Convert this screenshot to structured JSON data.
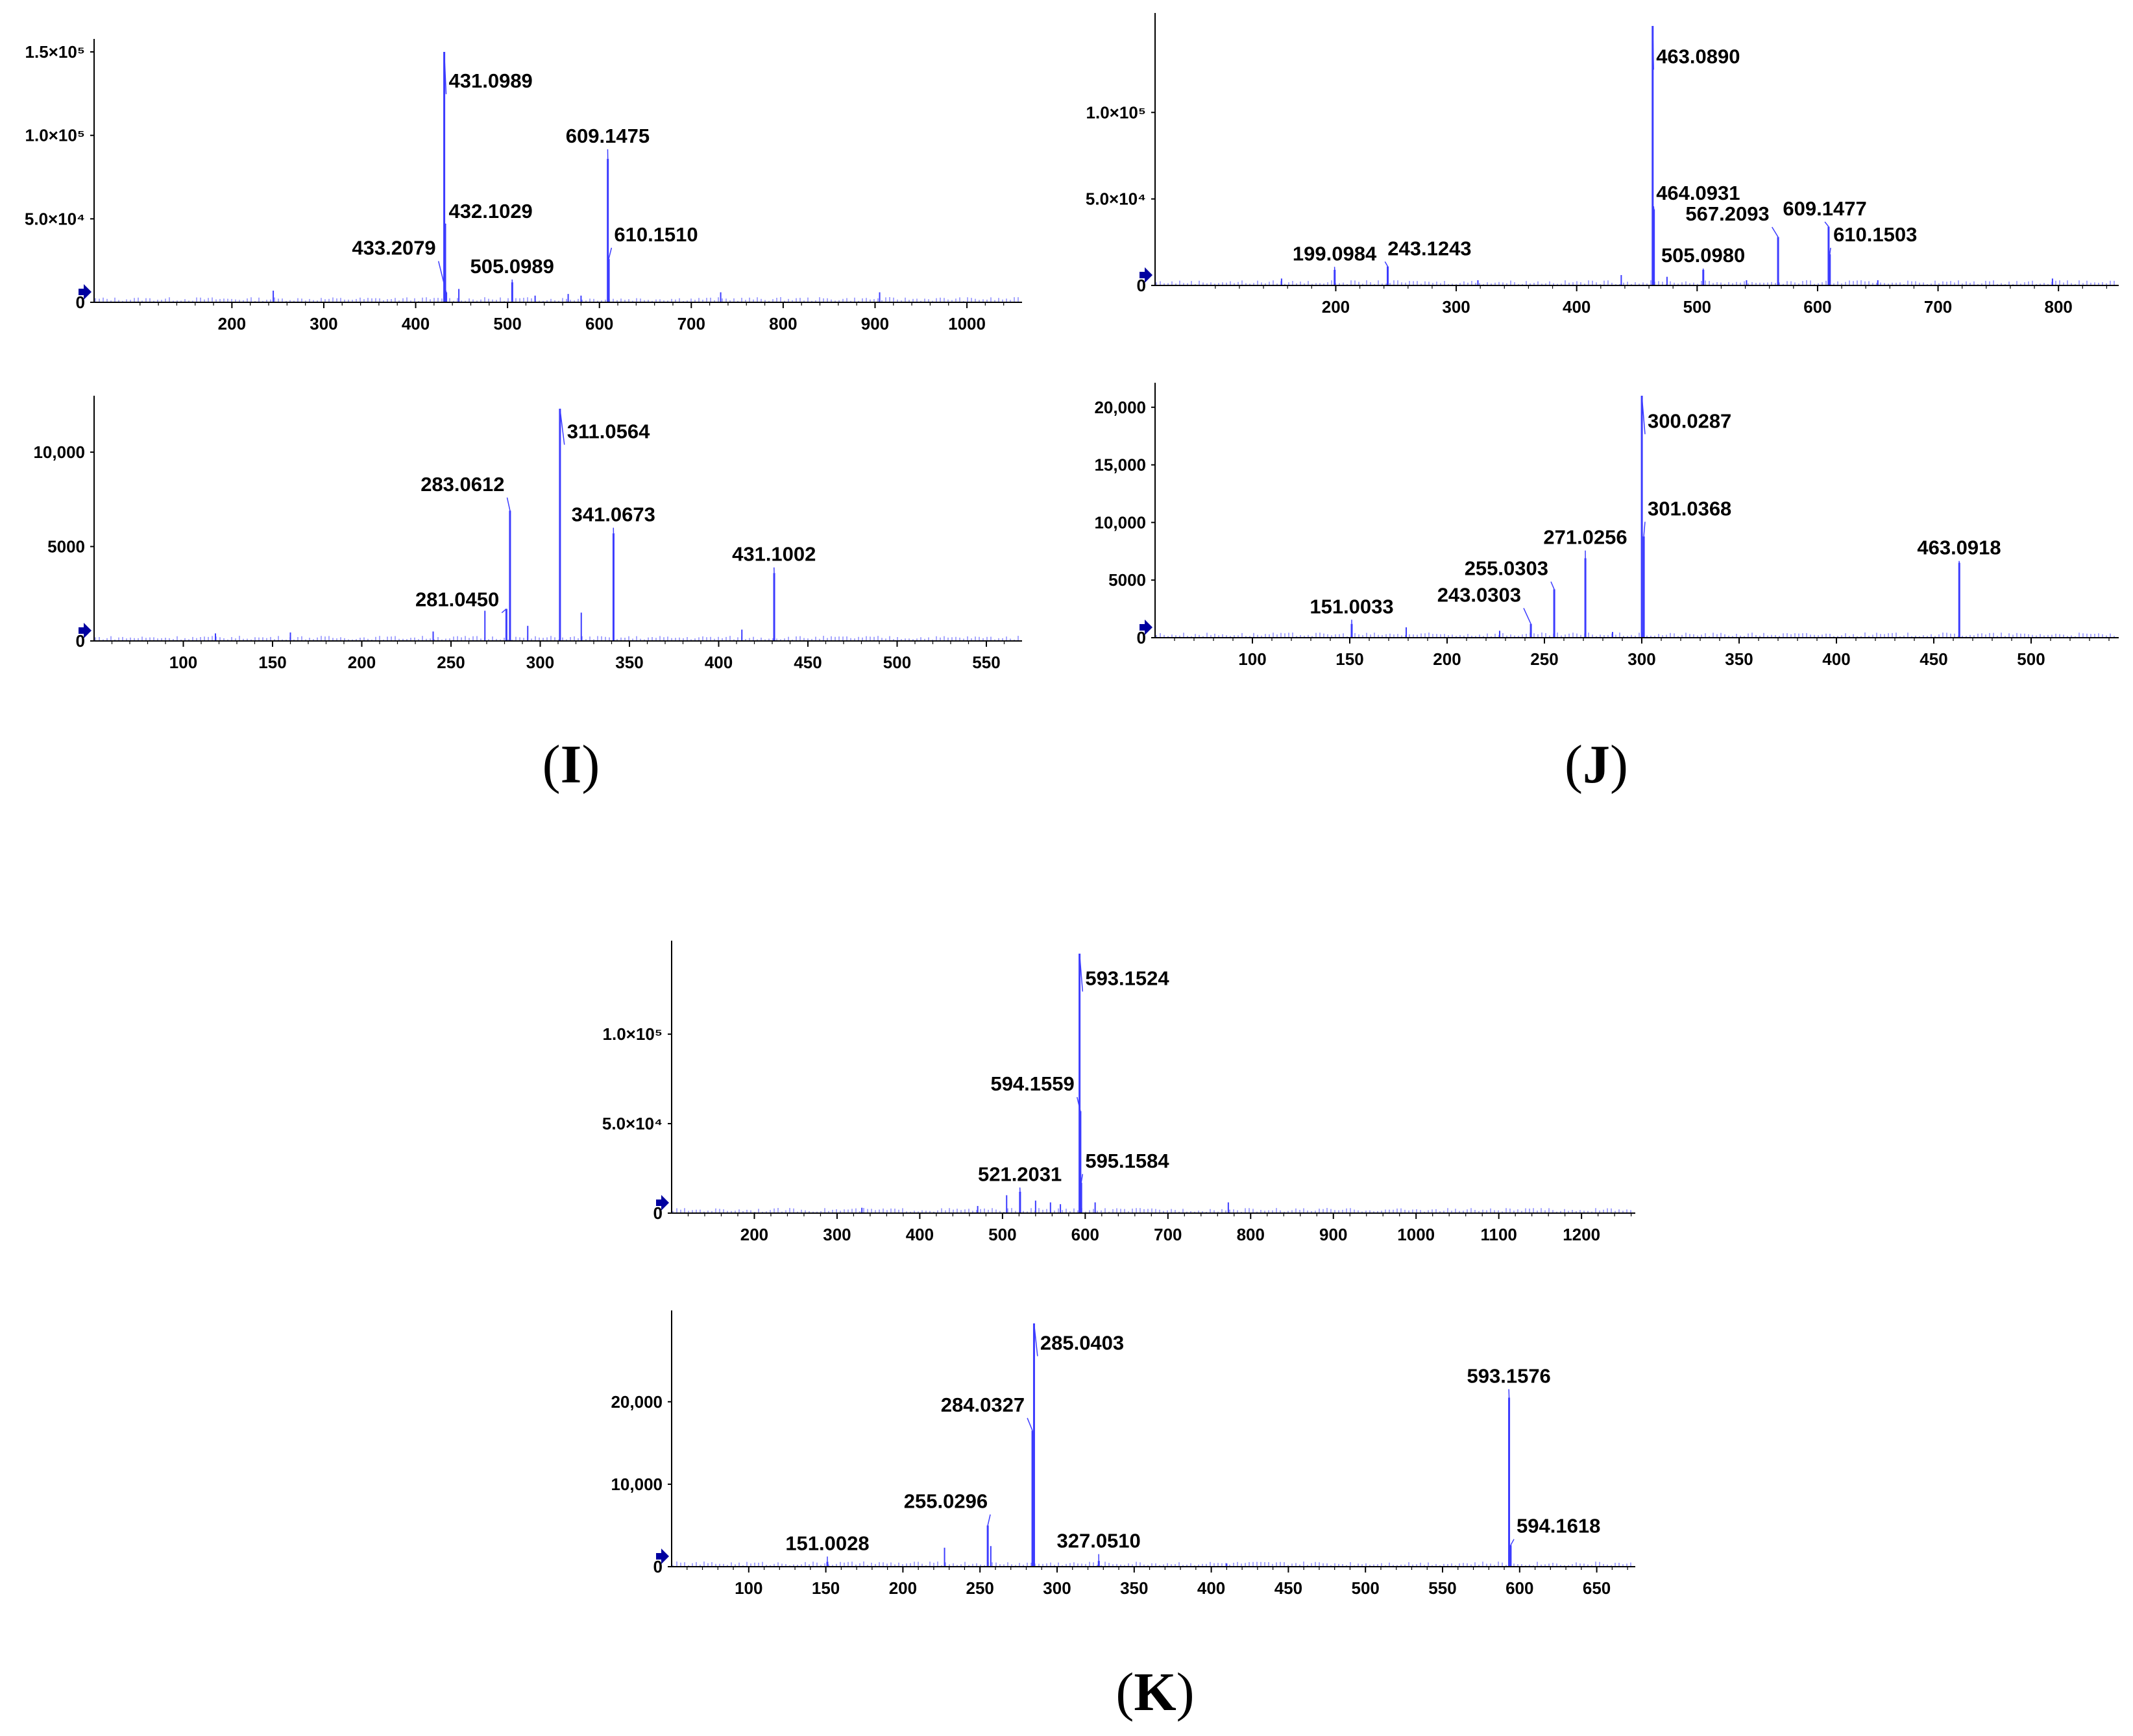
{
  "panels": [
    {
      "letter": "I",
      "open": "(",
      "close": ")"
    },
    {
      "letter": "J",
      "open": "(",
      "close": ")"
    },
    {
      "letter": "K",
      "open": "(",
      "close": ")"
    }
  ],
  "colors": {
    "peak": "#3c3cff",
    "axis": "#000000",
    "marker": "#0000a0"
  },
  "chart_data": [
    {
      "id": "I-ms1",
      "type": "bar",
      "xlim": [
        50,
        1060
      ],
      "ylim": [
        0,
        150000
      ],
      "xticks": [
        200,
        300,
        400,
        500,
        600,
        700,
        800,
        900,
        1000
      ],
      "yticks": [
        {
          "v": 0,
          "t": "0"
        },
        {
          "v": 50000,
          "t": "5.0×10⁴"
        },
        {
          "v": 100000,
          "t": "1.0×10⁵"
        },
        {
          "v": 150000,
          "t": "1.5×10⁵"
        }
      ],
      "peaks": [
        {
          "x": 431.0989,
          "y": 150000,
          "label": "431.0989",
          "lx": 436,
          "ly": 127000,
          "anchor": "start"
        },
        {
          "x": 432.1029,
          "y": 47000,
          "label": "432.1029",
          "lx": 436,
          "ly": 49000,
          "anchor": "start"
        },
        {
          "x": 433.2079,
          "y": 6000,
          "label": "433.2079",
          "lx": 422,
          "ly": 27000,
          "anchor": "end"
        },
        {
          "x": 505.0989,
          "y": 12000,
          "label": "505.0989",
          "lx": 505,
          "ly": 16000,
          "anchor": "middle"
        },
        {
          "x": 609.1475,
          "y": 86000,
          "label": "609.1475",
          "lx": 609,
          "ly": 94000,
          "anchor": "middle"
        },
        {
          "x": 610.151,
          "y": 26000,
          "label": "610.1510",
          "lx": 616,
          "ly": 35000,
          "anchor": "start"
        }
      ],
      "minor": [
        [
          245,
          7000
        ],
        [
          447,
          8000
        ],
        [
          530,
          4000
        ],
        [
          566,
          5000
        ],
        [
          580,
          4000
        ],
        [
          732,
          6000
        ],
        [
          905,
          6000
        ]
      ]
    },
    {
      "id": "I-ms2",
      "type": "bar",
      "xlim": [
        50,
        570
      ],
      "ylim": [
        0,
        12300
      ],
      "xticks": [
        100,
        150,
        200,
        250,
        300,
        350,
        400,
        450,
        500,
        550
      ],
      "yticks": [
        {
          "v": 0,
          "t": "0"
        },
        {
          "v": 5000,
          "t": "5000"
        },
        {
          "v": 10000,
          "t": "10,000"
        }
      ],
      "peaks": [
        {
          "x": 311.0564,
          "y": 12300,
          "label": "311.0564",
          "lx": 315,
          "ly": 10600,
          "anchor": "start"
        },
        {
          "x": 283.0612,
          "y": 6900,
          "label": "283.0612",
          "lx": 280,
          "ly": 7800,
          "anchor": "end"
        },
        {
          "x": 341.0673,
          "y": 5700,
          "label": "341.0673",
          "lx": 341,
          "ly": 6200,
          "anchor": "middle"
        },
        {
          "x": 431.1002,
          "y": 3600,
          "label": "431.1002",
          "lx": 431,
          "ly": 4100,
          "anchor": "middle"
        },
        {
          "x": 281.045,
          "y": 1700,
          "label": "281.0450",
          "lx": 277,
          "ly": 1700,
          "anchor": "end"
        }
      ],
      "minor": [
        [
          118,
          400
        ],
        [
          160,
          450
        ],
        [
          240,
          500
        ],
        [
          269,
          1600
        ],
        [
          293,
          800
        ],
        [
          323,
          1500
        ],
        [
          413,
          600
        ]
      ]
    },
    {
      "id": "J-ms1",
      "type": "bar",
      "xlim": [
        50,
        850
      ],
      "ylim": [
        0,
        150000
      ],
      "xticks": [
        200,
        300,
        400,
        500,
        600,
        700,
        800
      ],
      "yticks": [
        {
          "v": 0,
          "t": "0"
        },
        {
          "v": 50000,
          "t": "5.0×10⁴"
        },
        {
          "v": 100000,
          "t": "1.0×10⁵"
        }
      ],
      "peaks": [
        {
          "x": 463.089,
          "y": 150000,
          "label": "463.0890",
          "lx": 466,
          "ly": 127000,
          "anchor": "start"
        },
        {
          "x": 464.0931,
          "y": 44000,
          "label": "464.0931",
          "lx": 466,
          "ly": 48000,
          "anchor": "start"
        },
        {
          "x": 505.098,
          "y": 9000,
          "label": "505.0980",
          "lx": 505,
          "ly": 12000,
          "anchor": "middle"
        },
        {
          "x": 567.2093,
          "y": 28000,
          "label": "567.2093",
          "lx": 560,
          "ly": 36000,
          "anchor": "end"
        },
        {
          "x": 609.1477,
          "y": 34000,
          "label": "609.1477",
          "lx": 606,
          "ly": 39000,
          "anchor": "middle"
        },
        {
          "x": 610.1503,
          "y": 18000,
          "label": "610.1503",
          "lx": 613,
          "ly": 24000,
          "anchor": "start"
        },
        {
          "x": 199.0984,
          "y": 9000,
          "label": "199.0984",
          "lx": 199,
          "ly": 13000,
          "anchor": "middle"
        },
        {
          "x": 243.1243,
          "y": 11000,
          "label": "243.1243",
          "lx": 243,
          "ly": 16000,
          "anchor": "start"
        }
      ],
      "minor": [
        [
          155,
          4000
        ],
        [
          318,
          3000
        ],
        [
          437,
          6000
        ],
        [
          475,
          5000
        ],
        [
          541,
          3000
        ],
        [
          650,
          3000
        ],
        [
          795,
          4000
        ]
      ]
    },
    {
      "id": "J-ms2",
      "type": "bar",
      "xlim": [
        50,
        545
      ],
      "ylim": [
        0,
        21000
      ],
      "xticks": [
        100,
        150,
        200,
        250,
        300,
        350,
        400,
        450,
        500
      ],
      "yticks": [
        {
          "v": 0,
          "t": "0"
        },
        {
          "v": 5000,
          "t": "5000"
        },
        {
          "v": 10000,
          "t": "10,000"
        },
        {
          "v": 15000,
          "t": "15,000"
        },
        {
          "v": 20000,
          "t": "20,000"
        }
      ],
      "peaks": [
        {
          "x": 300.0287,
          "y": 21000,
          "label": "300.0287",
          "lx": 303,
          "ly": 18000,
          "anchor": "start"
        },
        {
          "x": 301.0368,
          "y": 8800,
          "label": "301.0368",
          "lx": 303,
          "ly": 10400,
          "anchor": "start"
        },
        {
          "x": 271.0256,
          "y": 6900,
          "label": "271.0256",
          "lx": 271,
          "ly": 7900,
          "anchor": "middle"
        },
        {
          "x": 255.0303,
          "y": 4200,
          "label": "255.0303",
          "lx": 252,
          "ly": 5200,
          "anchor": "end"
        },
        {
          "x": 243.0303,
          "y": 1200,
          "label": "243.0303",
          "lx": 238,
          "ly": 2900,
          "anchor": "end"
        },
        {
          "x": 151.0033,
          "y": 1200,
          "label": "151.0033",
          "lx": 151,
          "ly": 1900,
          "anchor": "middle"
        },
        {
          "x": 463.0918,
          "y": 6500,
          "label": "463.0918",
          "lx": 463,
          "ly": 7000,
          "anchor": "middle"
        }
      ],
      "minor": [
        [
          179,
          900
        ],
        [
          227,
          600
        ],
        [
          285,
          500
        ]
      ]
    },
    {
      "id": "K-ms1",
      "type": "bar",
      "xlim": [
        100,
        1265
      ],
      "ylim": [
        0,
        145000
      ],
      "xticks": [
        200,
        300,
        400,
        500,
        600,
        700,
        800,
        900,
        1000,
        1100,
        1200
      ],
      "yticks": [
        {
          "v": 0,
          "t": "0"
        },
        {
          "v": 50000,
          "t": "5.0×10⁴"
        },
        {
          "v": 100000,
          "t": "1.0×10⁵"
        }
      ],
      "peaks": [
        {
          "x": 593.1524,
          "y": 145000,
          "label": "593.1524",
          "lx": 600,
          "ly": 126000,
          "anchor": "start"
        },
        {
          "x": 594.1559,
          "y": 57000,
          "label": "594.1559",
          "lx": 587,
          "ly": 67000,
          "anchor": "end"
        },
        {
          "x": 595.1584,
          "y": 17000,
          "label": "595.1584",
          "lx": 600,
          "ly": 24000,
          "anchor": "start"
        },
        {
          "x": 521.2031,
          "y": 12000,
          "label": "521.2031",
          "lx": 521,
          "ly": 16500,
          "anchor": "middle"
        }
      ],
      "minor": [
        [
          330,
          3000
        ],
        [
          470,
          4000
        ],
        [
          505,
          10000
        ],
        [
          540,
          7000
        ],
        [
          558,
          6000
        ],
        [
          570,
          5000
        ],
        [
          612,
          6000
        ],
        [
          773,
          6000
        ]
      ]
    },
    {
      "id": "K-ms2",
      "type": "bar",
      "xlim": [
        50,
        675
      ],
      "ylim": [
        0,
        29500
      ],
      "xticks": [
        100,
        150,
        200,
        250,
        300,
        350,
        400,
        450,
        500,
        550,
        600,
        650
      ],
      "yticks": [
        {
          "v": 0,
          "t": "0"
        },
        {
          "v": 10000,
          "t": "10,000"
        },
        {
          "v": 20000,
          "t": "20,000"
        }
      ],
      "peaks": [
        {
          "x": 285.0403,
          "y": 29500,
          "label": "285.0403",
          "lx": 289,
          "ly": 26000,
          "anchor": "start"
        },
        {
          "x": 284.0327,
          "y": 16500,
          "label": "284.0327",
          "lx": 279,
          "ly": 18500,
          "anchor": "end"
        },
        {
          "x": 255.0296,
          "y": 5000,
          "label": "255.0296",
          "lx": 255,
          "ly": 6800,
          "anchor": "end"
        },
        {
          "x": 327.051,
          "y": 700,
          "label": "327.0510",
          "lx": 327,
          "ly": 2000,
          "anchor": "middle"
        },
        {
          "x": 151.0028,
          "y": 600,
          "label": "151.0028",
          "lx": 151,
          "ly": 1700,
          "anchor": "middle"
        },
        {
          "x": 593.1576,
          "y": 20500,
          "label": "593.1576",
          "lx": 593,
          "ly": 22000,
          "anchor": "middle"
        },
        {
          "x": 594.1618,
          "y": 2600,
          "label": "594.1618",
          "lx": 598,
          "ly": 3800,
          "anchor": "start"
        }
      ],
      "minor": [
        [
          227,
          2300
        ],
        [
          257,
          2500
        ],
        [
          410,
          400
        ]
      ]
    }
  ]
}
